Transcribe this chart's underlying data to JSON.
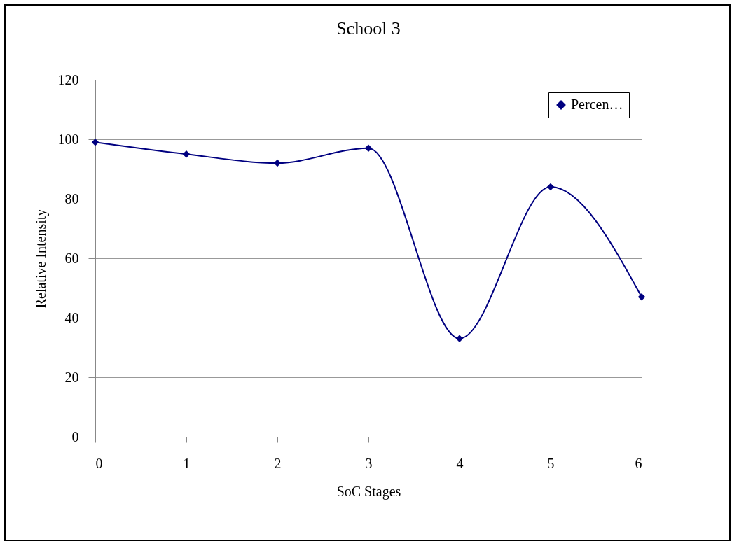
{
  "chart_data": {
    "type": "line",
    "title": "School 3",
    "xlabel": "SoC Stages",
    "ylabel": "Relative Intensity",
    "x": [
      0,
      1,
      2,
      3,
      4,
      5,
      6
    ],
    "series": [
      {
        "name": "Percen…",
        "color": "#000080",
        "values": [
          99,
          95,
          92,
          97,
          33,
          84,
          47
        ]
      }
    ],
    "xlim": [
      0,
      6
    ],
    "xticks": [
      0,
      1,
      2,
      3,
      4,
      5,
      6
    ],
    "ylim": [
      0,
      120
    ],
    "yticks": [
      0,
      20,
      40,
      60,
      80,
      100,
      120
    ],
    "grid": "y",
    "legend": "top right",
    "marker": "diamond",
    "line_style": "solid"
  }
}
